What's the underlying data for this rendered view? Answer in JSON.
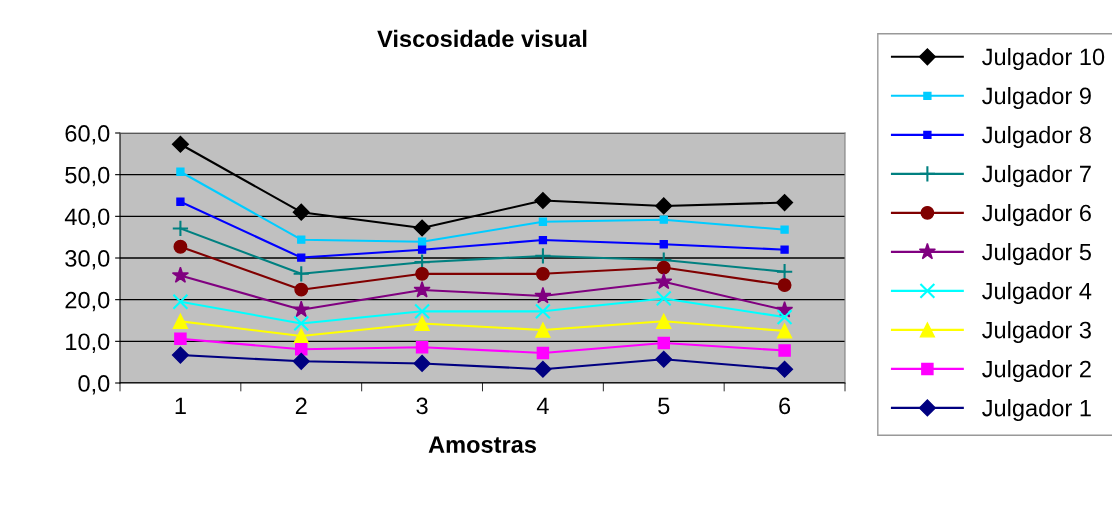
{
  "chart_data": {
    "type": "line",
    "title": "Viscosidade visual",
    "xlabel": "Amostras",
    "categories": [
      "1",
      "2",
      "3",
      "4",
      "5",
      "6"
    ],
    "ylim": [
      0,
      60
    ],
    "yticks": [
      {
        "value": 0,
        "label": "0,0"
      },
      {
        "value": 10,
        "label": "10,0"
      },
      {
        "value": 20,
        "label": "20,0"
      },
      {
        "value": 30,
        "label": "30,0"
      },
      {
        "value": 40,
        "label": "40,0"
      },
      {
        "value": 50,
        "label": "50,0"
      },
      {
        "value": 60,
        "label": "60,0"
      }
    ],
    "grid": "y",
    "legend": "right",
    "series": [
      {
        "name": "Julgador 10",
        "color": "#000000",
        "marker": "diamond",
        "values": [
          57.3,
          41.0,
          37.2,
          43.8,
          42.5,
          43.3
        ]
      },
      {
        "name": "Julgador 9",
        "color": "#00ccff",
        "marker": "square",
        "values": [
          50.7,
          34.4,
          33.9,
          38.7,
          39.2,
          36.8
        ]
      },
      {
        "name": "Julgador 8",
        "color": "#0000ff",
        "marker": "square",
        "values": [
          43.5,
          30.1,
          32.0,
          34.3,
          33.3,
          32.0
        ]
      },
      {
        "name": "Julgador 7",
        "color": "#008080",
        "marker": "cross",
        "values": [
          37.1,
          26.2,
          29.0,
          30.5,
          29.5,
          26.7
        ]
      },
      {
        "name": "Julgador 6",
        "color": "#800000",
        "marker": "circle",
        "values": [
          32.7,
          22.4,
          26.2,
          26.2,
          27.7,
          23.5
        ]
      },
      {
        "name": "Julgador 5",
        "color": "#800080",
        "marker": "star",
        "values": [
          25.8,
          17.6,
          22.3,
          20.9,
          24.3,
          17.5
        ]
      },
      {
        "name": "Julgador 4",
        "color": "#00ffff",
        "marker": "cross",
        "values": [
          19.5,
          14.3,
          17.2,
          17.2,
          20.3,
          15.8
        ]
      },
      {
        "name": "Julgador 3",
        "color": "#ffff00",
        "marker": "triangle",
        "values": [
          14.8,
          11.3,
          14.3,
          12.7,
          14.8,
          12.5
        ]
      },
      {
        "name": "Julgador 2",
        "color": "#ff00ff",
        "marker": "square",
        "values": [
          10.6,
          8.1,
          8.6,
          7.2,
          9.6,
          7.8
        ]
      },
      {
        "name": "Julgador 1",
        "color": "#000080",
        "marker": "diamond",
        "values": [
          6.7,
          5.2,
          4.7,
          3.3,
          5.7,
          3.3
        ]
      }
    ]
  }
}
